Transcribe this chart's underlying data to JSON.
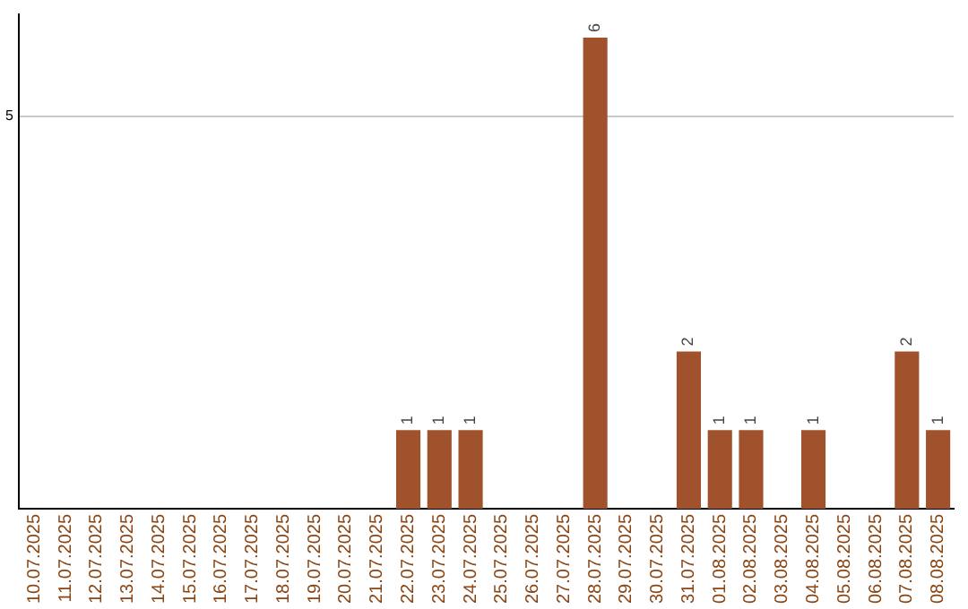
{
  "chart_data": {
    "type": "bar",
    "categories": [
      "10.07.2025",
      "11.07.2025",
      "12.07.2025",
      "13.07.2025",
      "14.07.2025",
      "15.07.2025",
      "16.07.2025",
      "17.07.2025",
      "18.07.2025",
      "19.07.2025",
      "20.07.2025",
      "21.07.2025",
      "22.07.2025",
      "23.07.2025",
      "24.07.2025",
      "25.07.2025",
      "26.07.2025",
      "27.07.2025",
      "28.07.2025",
      "29.07.2025",
      "30.07.2025",
      "31.07.2025",
      "01.08.2025",
      "02.08.2025",
      "03.08.2025",
      "04.08.2025",
      "05.08.2025",
      "06.08.2025",
      "07.08.2025",
      "08.08.2025"
    ],
    "values": [
      null,
      null,
      null,
      null,
      null,
      null,
      null,
      null,
      null,
      null,
      null,
      null,
      1,
      1,
      1,
      null,
      null,
      null,
      6,
      null,
      null,
      2,
      1,
      1,
      null,
      1,
      null,
      null,
      2,
      1
    ],
    "color": "#a0522d",
    "ylim": [
      0,
      6.3
    ],
    "yticks": [
      5
    ],
    "grid": "y",
    "data_labels": true,
    "legend": false
  }
}
